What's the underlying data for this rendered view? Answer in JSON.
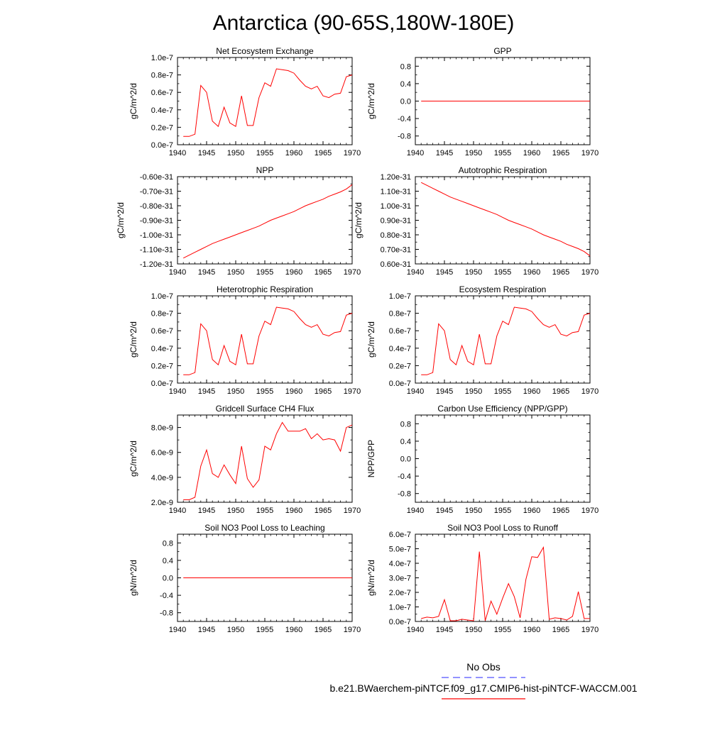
{
  "figure": {
    "title": "Antarctica (90-65S,180W-180E)",
    "legend": [
      {
        "label": "No Obs",
        "color": "#5050ff",
        "dash": true
      },
      {
        "label": "b.e21.BWaerchem-piNTCF.f09_g17.CMIP6-hist-piNTCF-WACCM.001",
        "color": "#ff0000",
        "dash": false
      }
    ]
  },
  "chart_data": [
    {
      "type": "line",
      "title": "Net Ecosystem Exchange",
      "ylabel": "gC/m^2/d",
      "xlim": [
        1940,
        1970
      ],
      "ylim": [
        0.0,
        1e-07
      ],
      "xticks": [
        1940,
        1945,
        1950,
        1955,
        1960,
        1965,
        1970
      ],
      "yticks": [
        0,
        2e-08,
        4e-08,
        6e-08,
        8e-08,
        1e-07
      ],
      "yticklabels": [
        "0.0e-7",
        "0.2e-7",
        "0.4e-7",
        "0.6e-7",
        "0.8e-7",
        "1.0e-7"
      ],
      "x": [
        1941,
        1942,
        1943,
        1944,
        1945,
        1946,
        1947,
        1948,
        1949,
        1950,
        1951,
        1952,
        1953,
        1954,
        1955,
        1956,
        1957,
        1958,
        1959,
        1960,
        1961,
        1962,
        1963,
        1964,
        1965,
        1966,
        1967,
        1968,
        1969,
        1970
      ],
      "values": [
        9.5e-09,
        9.5e-09,
        1.2e-08,
        6.8e-08,
        6e-08,
        2.7e-08,
        2.1e-08,
        4.3e-08,
        2.5e-08,
        2.1e-08,
        5.6e-08,
        2.2e-08,
        2.2e-08,
        5.4e-08,
        7.1e-08,
        6.7e-08,
        8.7e-08,
        8.6e-08,
        8.5e-08,
        8.2e-08,
        7.4e-08,
        6.7e-08,
        6.4e-08,
        6.7e-08,
        5.6e-08,
        5.4e-08,
        5.8e-08,
        5.9e-08,
        7.8e-08,
        8e-08
      ]
    },
    {
      "type": "line",
      "title": "GPP",
      "ylabel": "gC/m^2/d",
      "xlim": [
        1940,
        1970
      ],
      "ylim": [
        -1.0,
        1.0
      ],
      "xticks": [
        1940,
        1945,
        1950,
        1955,
        1960,
        1965,
        1970
      ],
      "yticks": [
        -0.8,
        -0.4,
        0.0,
        0.4,
        0.8
      ],
      "yticklabels": [
        "-0.8",
        "-0.4",
        "0.0",
        "0.4",
        "0.8"
      ],
      "x": [
        1941,
        1970
      ],
      "values": [
        0,
        0
      ]
    },
    {
      "type": "line",
      "title": "NPP",
      "ylabel": "gC/m^2/d",
      "xlim": [
        1940,
        1970
      ],
      "ylim": [
        -1.2e-31,
        -6e-32
      ],
      "xticks": [
        1940,
        1945,
        1950,
        1955,
        1960,
        1965,
        1970
      ],
      "yticks": [
        -1.2e-31,
        -1.1e-31,
        -1e-31,
        -9e-32,
        -8e-32,
        -7e-32,
        -6e-32
      ],
      "yticklabels": [
        "-1.20e-31",
        "-1.10e-31",
        "-1.00e-31",
        "-0.90e-31",
        "-0.80e-31",
        "-0.70e-31",
        "-0.60e-31"
      ],
      "x": [
        1941,
        1942,
        1943,
        1944,
        1945,
        1946,
        1947,
        1948,
        1949,
        1950,
        1951,
        1952,
        1953,
        1954,
        1955,
        1956,
        1957,
        1958,
        1959,
        1960,
        1961,
        1962,
        1963,
        1964,
        1965,
        1966,
        1967,
        1968,
        1969,
        1970
      ],
      "values": [
        -1.16e-31,
        -1.14e-31,
        -1.12e-31,
        -1.1e-31,
        -1.08e-31,
        -1.06e-31,
        -1.045e-31,
        -1.03e-31,
        -1.015e-31,
        -1e-31,
        -9.85e-32,
        -9.7e-32,
        -9.55e-32,
        -9.4e-32,
        -9.2e-32,
        -9e-32,
        -8.85e-32,
        -8.7e-32,
        -8.55e-32,
        -8.4e-32,
        -8.2e-32,
        -8e-32,
        -7.85e-32,
        -7.7e-32,
        -7.55e-32,
        -7.35e-32,
        -7.2e-32,
        -7.05e-32,
        -6.85e-32,
        -6.55e-32
      ]
    },
    {
      "type": "line",
      "title": "Autotrophic Respiration",
      "ylabel": "gC/m^2/d",
      "xlim": [
        1940,
        1970
      ],
      "ylim": [
        6e-32,
        1.2e-31
      ],
      "xticks": [
        1940,
        1945,
        1950,
        1955,
        1960,
        1965,
        1970
      ],
      "yticks": [
        6e-32,
        7e-32,
        8e-32,
        9e-32,
        1e-31,
        1.1e-31,
        1.2e-31
      ],
      "yticklabels": [
        "0.60e-31",
        "0.70e-31",
        "0.80e-31",
        "0.90e-31",
        "1.00e-31",
        "1.10e-31",
        "1.20e-31"
      ],
      "x": [
        1941,
        1942,
        1943,
        1944,
        1945,
        1946,
        1947,
        1948,
        1949,
        1950,
        1951,
        1952,
        1953,
        1954,
        1955,
        1956,
        1957,
        1958,
        1959,
        1960,
        1961,
        1962,
        1963,
        1964,
        1965,
        1966,
        1967,
        1968,
        1969,
        1970
      ],
      "values": [
        1.16e-31,
        1.14e-31,
        1.12e-31,
        1.1e-31,
        1.08e-31,
        1.06e-31,
        1.045e-31,
        1.03e-31,
        1.015e-31,
        1e-31,
        9.85e-32,
        9.7e-32,
        9.55e-32,
        9.4e-32,
        9.2e-32,
        9e-32,
        8.85e-32,
        8.7e-32,
        8.55e-32,
        8.4e-32,
        8.2e-32,
        8e-32,
        7.85e-32,
        7.7e-32,
        7.55e-32,
        7.35e-32,
        7.2e-32,
        7.05e-32,
        6.85e-32,
        6.55e-32
      ]
    },
    {
      "type": "line",
      "title": "Heterotrophic Respiration",
      "ylabel": "gC/m^2/d",
      "xlim": [
        1940,
        1970
      ],
      "ylim": [
        0.0,
        1e-07
      ],
      "xticks": [
        1940,
        1945,
        1950,
        1955,
        1960,
        1965,
        1970
      ],
      "yticks": [
        0,
        2e-08,
        4e-08,
        6e-08,
        8e-08,
        1e-07
      ],
      "yticklabels": [
        "0.0e-7",
        "0.2e-7",
        "0.4e-7",
        "0.6e-7",
        "0.8e-7",
        "1.0e-7"
      ],
      "x": [
        1941,
        1942,
        1943,
        1944,
        1945,
        1946,
        1947,
        1948,
        1949,
        1950,
        1951,
        1952,
        1953,
        1954,
        1955,
        1956,
        1957,
        1958,
        1959,
        1960,
        1961,
        1962,
        1963,
        1964,
        1965,
        1966,
        1967,
        1968,
        1969,
        1970
      ],
      "values": [
        9.5e-09,
        9.5e-09,
        1.2e-08,
        6.8e-08,
        6e-08,
        2.7e-08,
        2.1e-08,
        4.3e-08,
        2.5e-08,
        2.1e-08,
        5.6e-08,
        2.2e-08,
        2.2e-08,
        5.4e-08,
        7.1e-08,
        6.7e-08,
        8.7e-08,
        8.6e-08,
        8.5e-08,
        8.2e-08,
        7.4e-08,
        6.7e-08,
        6.4e-08,
        6.7e-08,
        5.6e-08,
        5.4e-08,
        5.8e-08,
        5.9e-08,
        7.8e-08,
        8e-08
      ]
    },
    {
      "type": "line",
      "title": "Ecosystem Respiration",
      "ylabel": "gC/m^2/d",
      "xlim": [
        1940,
        1970
      ],
      "ylim": [
        0.0,
        1e-07
      ],
      "xticks": [
        1940,
        1945,
        1950,
        1955,
        1960,
        1965,
        1970
      ],
      "yticks": [
        0,
        2e-08,
        4e-08,
        6e-08,
        8e-08,
        1e-07
      ],
      "yticklabels": [
        "0.0e-7",
        "0.2e-7",
        "0.4e-7",
        "0.6e-7",
        "0.8e-7",
        "1.0e-7"
      ],
      "x": [
        1941,
        1942,
        1943,
        1944,
        1945,
        1946,
        1947,
        1948,
        1949,
        1950,
        1951,
        1952,
        1953,
        1954,
        1955,
        1956,
        1957,
        1958,
        1959,
        1960,
        1961,
        1962,
        1963,
        1964,
        1965,
        1966,
        1967,
        1968,
        1969,
        1970
      ],
      "values": [
        9.5e-09,
        9.5e-09,
        1.2e-08,
        6.8e-08,
        6e-08,
        2.7e-08,
        2.1e-08,
        4.3e-08,
        2.5e-08,
        2.1e-08,
        5.6e-08,
        2.2e-08,
        2.2e-08,
        5.4e-08,
        7.1e-08,
        6.7e-08,
        8.7e-08,
        8.6e-08,
        8.5e-08,
        8.2e-08,
        7.4e-08,
        6.7e-08,
        6.4e-08,
        6.7e-08,
        5.6e-08,
        5.4e-08,
        5.8e-08,
        5.9e-08,
        7.8e-08,
        8e-08
      ]
    },
    {
      "type": "line",
      "title": "Gridcell Surface CH4 Flux",
      "ylabel": "gC/m^2/d",
      "xlim": [
        1940,
        1970
      ],
      "ylim": [
        2e-09,
        9e-09
      ],
      "xticks": [
        1940,
        1945,
        1950,
        1955,
        1960,
        1965,
        1970
      ],
      "yticks": [
        2e-09,
        4e-09,
        6e-09,
        8e-09
      ],
      "yticklabels": [
        "2.0e-9",
        "4.0e-9",
        "6.0e-9",
        "8.0e-9"
      ],
      "x": [
        1941,
        1942,
        1943,
        1944,
        1945,
        1946,
        1947,
        1948,
        1949,
        1950,
        1951,
        1952,
        1953,
        1954,
        1955,
        1956,
        1957,
        1958,
        1959,
        1960,
        1961,
        1962,
        1963,
        1964,
        1965,
        1966,
        1967,
        1968,
        1969,
        1970
      ],
      "values": [
        2.2e-09,
        2.2e-09,
        2.4e-09,
        4.9e-09,
        6.2e-09,
        4.3e-09,
        4e-09,
        5e-09,
        4.2e-09,
        3.5e-09,
        6.5e-09,
        3.9e-09,
        3.2e-09,
        3.8e-09,
        6.5e-09,
        6.2e-09,
        7.5e-09,
        8.4e-09,
        7.7e-09,
        7.7e-09,
        7.7e-09,
        7.9e-09,
        7.1e-09,
        7.5e-09,
        7e-09,
        7.1e-09,
        7e-09,
        6.1e-09,
        8e-09,
        8.2e-09
      ]
    },
    {
      "type": "line",
      "title": "Carbon Use Efficiency (NPP/GPP)",
      "ylabel": "NPP/GPP",
      "xlim": [
        1940,
        1970
      ],
      "ylim": [
        -1.0,
        1.0
      ],
      "xticks": [
        1940,
        1945,
        1950,
        1955,
        1960,
        1965,
        1970
      ],
      "yticks": [
        -0.8,
        -0.4,
        0.0,
        0.4,
        0.8
      ],
      "yticklabels": [
        "-0.8",
        "-0.4",
        "0.0",
        "0.4",
        "0.8"
      ],
      "x": [],
      "values": []
    },
    {
      "type": "line",
      "title": "Soil NO3 Pool Loss to Leaching",
      "ylabel": "gN/m^2/d",
      "xlim": [
        1940,
        1970
      ],
      "ylim": [
        -1.0,
        1.0
      ],
      "xticks": [
        1940,
        1945,
        1950,
        1955,
        1960,
        1965,
        1970
      ],
      "yticks": [
        -0.8,
        -0.4,
        0.0,
        0.4,
        0.8
      ],
      "yticklabels": [
        "-0.8",
        "-0.4",
        "0.0",
        "0.4",
        "0.8"
      ],
      "x": [
        1941,
        1970
      ],
      "values": [
        0,
        0
      ]
    },
    {
      "type": "line",
      "title": "Soil NO3 Pool Loss to Runoff",
      "ylabel": "gN/m^2/d",
      "xlim": [
        1940,
        1970
      ],
      "ylim": [
        0.0,
        6e-07
      ],
      "xticks": [
        1940,
        1945,
        1950,
        1955,
        1960,
        1965,
        1970
      ],
      "yticks": [
        0,
        1e-07,
        2e-07,
        3e-07,
        4e-07,
        5e-07,
        6e-07
      ],
      "yticklabels": [
        "0.0e-7",
        "1.0e-7",
        "2.0e-7",
        "3.0e-7",
        "4.0e-7",
        "5.0e-7",
        "6.0e-7"
      ],
      "x": [
        1941,
        1942,
        1943,
        1944,
        1945,
        1946,
        1947,
        1948,
        1949,
        1950,
        1951,
        1952,
        1953,
        1954,
        1955,
        1956,
        1957,
        1958,
        1959,
        1960,
        1961,
        1962,
        1963,
        1964,
        1965,
        1966,
        1967,
        1968,
        1969,
        1970
      ],
      "values": [
        2e-08,
        3e-08,
        2.5e-08,
        3.5e-08,
        1.5e-07,
        5e-09,
        5e-09,
        1.5e-08,
        1e-08,
        5e-09,
        4.8e-07,
        5e-09,
        1.4e-07,
        5e-08,
        1.6e-07,
        2.6e-07,
        1.7e-07,
        2.5e-08,
        2.9e-07,
        4.45e-07,
        4.4e-07,
        5.1e-07,
        1.5e-08,
        2.5e-08,
        2e-08,
        1e-08,
        3.5e-08,
        2.05e-07,
        2e-08,
        2e-08
      ]
    }
  ]
}
